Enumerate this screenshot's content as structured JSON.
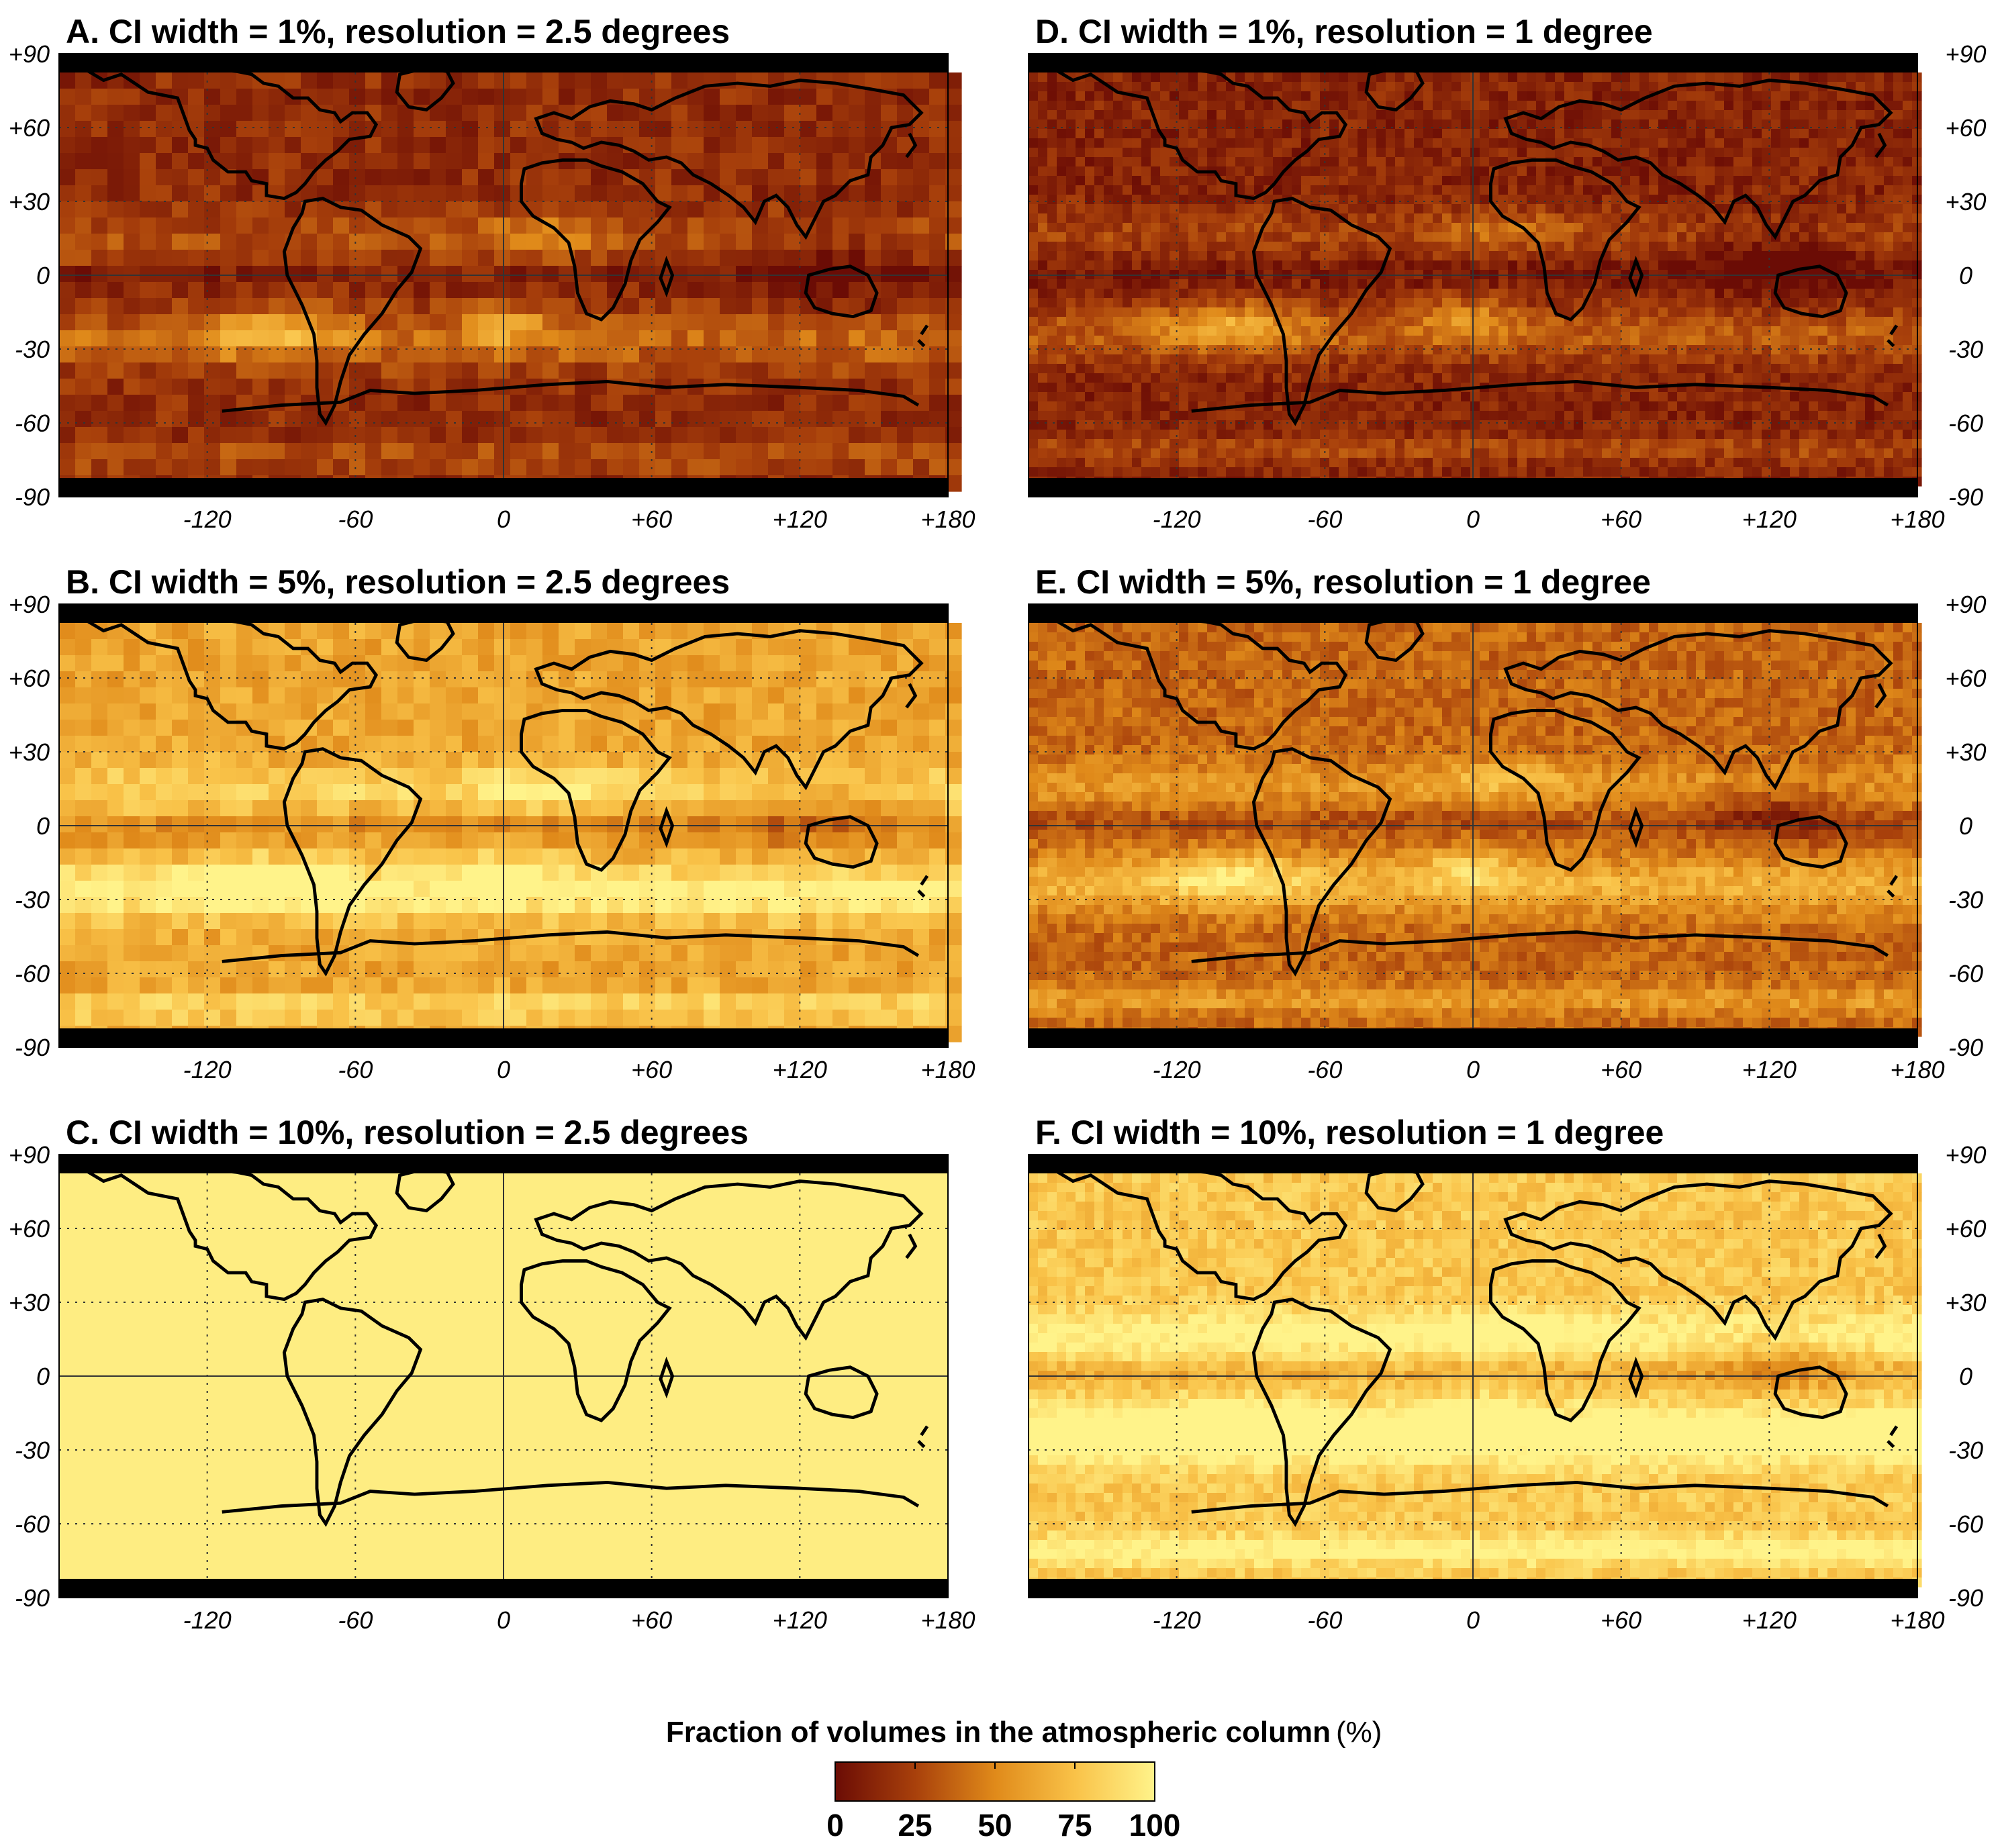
{
  "panels": [
    {
      "title": "A. CI width = 1%, resolution = 2.5 degrees",
      "ci_width_pct": 1,
      "resolution_deg": 2.5,
      "fill_level": 0.16
    },
    {
      "title": "D. CI width = 1%, resolution = 1 degree",
      "ci_width_pct": 1,
      "resolution_deg": 1,
      "fill_level": 0.12
    },
    {
      "title": "B. CI width = 5%, resolution = 2.5 degrees",
      "ci_width_pct": 5,
      "resolution_deg": 2.5,
      "fill_level": 0.62
    },
    {
      "title": "E. CI width = 5%, resolution = 1 degree",
      "ci_width_pct": 5,
      "resolution_deg": 1,
      "fill_level": 0.38
    },
    {
      "title": "C. CI width = 10%, resolution = 2.5 degrees",
      "ci_width_pct": 10,
      "resolution_deg": 2.5,
      "fill_level": 1.0
    },
    {
      "title": "F. CI width = 10%, resolution = 1 degree",
      "ci_width_pct": 10,
      "resolution_deg": 1,
      "fill_level": 0.78
    }
  ],
  "axes": {
    "lat_ticks": [
      "+90",
      "+60",
      "+30",
      "0",
      "-30",
      "-60",
      "-90"
    ],
    "lon_ticks": [
      "-120",
      "-60",
      "0",
      "+60",
      "+120",
      "+180"
    ]
  },
  "colorbar": {
    "title": "Fraction of volumes in the atmospheric column",
    "unit": "(%)",
    "ticks": [
      "0",
      "25",
      "50",
      "75",
      "100"
    ],
    "range": [
      0,
      100
    ],
    "colors": [
      "#6b0c05",
      "#a8400b",
      "#e08a1a",
      "#f9c248",
      "#fff38a"
    ]
  },
  "colors": {
    "polar_band": "#000000",
    "coastline": "#000000"
  }
}
